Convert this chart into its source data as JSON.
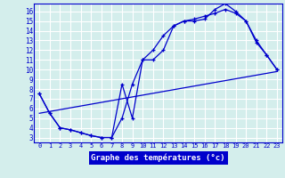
{
  "xlabel": "Graphe des températures (°c)",
  "bg_color": "#d4eeec",
  "grid_color": "#ffffff",
  "line_color": "#0000cc",
  "label_bg": "#0000cc",
  "label_fg": "#ffffff",
  "xlim": [
    -0.5,
    23.5
  ],
  "ylim": [
    2.5,
    16.8
  ],
  "x_ticks": [
    0,
    1,
    2,
    3,
    4,
    5,
    6,
    7,
    8,
    9,
    10,
    11,
    12,
    13,
    14,
    15,
    16,
    17,
    18,
    19,
    20,
    21,
    22,
    23
  ],
  "y_ticks": [
    3,
    4,
    5,
    6,
    7,
    8,
    9,
    10,
    11,
    12,
    13,
    14,
    15,
    16
  ],
  "line1_x": [
    0,
    1,
    2,
    3,
    4,
    5,
    6,
    7,
    8,
    9,
    10,
    11,
    12,
    13,
    14,
    15,
    16,
    17,
    18,
    19,
    20,
    21,
    22,
    23
  ],
  "line1_y": [
    7.5,
    5.5,
    4.0,
    3.8,
    3.5,
    3.2,
    3.0,
    3.0,
    8.5,
    5.0,
    11.0,
    12.0,
    13.5,
    14.5,
    15.0,
    15.0,
    15.2,
    16.2,
    16.8,
    16.0,
    15.0,
    13.0,
    11.5,
    10.0
  ],
  "line2_x": [
    0,
    1,
    2,
    3,
    4,
    5,
    6,
    7,
    8,
    9,
    10,
    11,
    12,
    13,
    14,
    15,
    16,
    17,
    18,
    19,
    20,
    21,
    22,
    23
  ],
  "line2_y": [
    7.5,
    5.5,
    4.0,
    3.8,
    3.5,
    3.2,
    3.0,
    3.0,
    5.0,
    8.5,
    11.0,
    11.0,
    12.0,
    14.5,
    15.0,
    15.2,
    15.5,
    15.8,
    16.2,
    15.8,
    15.0,
    12.8,
    11.5,
    10.0
  ],
  "line3_x": [
    0,
    23
  ],
  "line3_y": [
    5.5,
    9.8
  ]
}
